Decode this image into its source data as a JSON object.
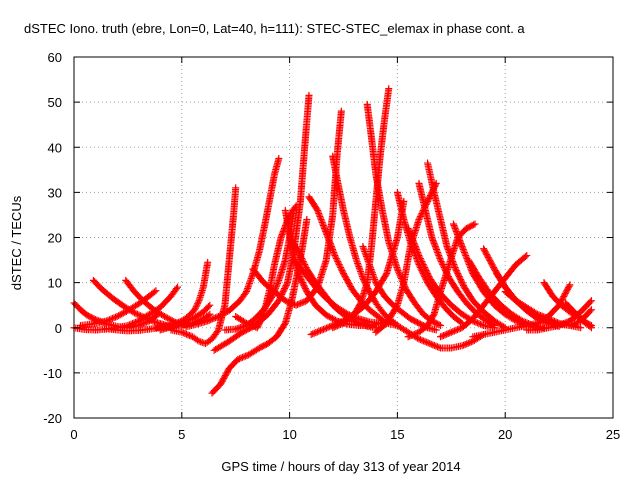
{
  "chart_data": {
    "type": "scatter",
    "title": "dSTEC Iono. truth (ebre, Lon=0, Lat=40, h=111): STEC-STEC_elemax in phase cont. a",
    "xlabel": "GPS time / hours of day 313 of year 2014",
    "ylabel": "dSTEC  / TECUs",
    "xlim": [
      0,
      25
    ],
    "ylim": [
      -20,
      60
    ],
    "x_ticks": [
      0,
      5,
      10,
      15,
      20,
      25
    ],
    "y_ticks": [
      -20,
      -10,
      0,
      10,
      20,
      30,
      40,
      50,
      60
    ],
    "x_tick_labels": [
      "0",
      "5",
      "10",
      "15",
      "20",
      "25"
    ],
    "y_tick_labels": [
      "-20",
      "-10",
      "0",
      "10",
      "20",
      "30",
      "40",
      "50",
      "60"
    ],
    "grid": true,
    "marker": "plus",
    "color": "#ff0000",
    "series": [
      {
        "x": [
          0.0,
          0.3,
          0.6,
          1.0,
          1.5,
          2.0,
          2.5,
          3.0,
          3.5,
          3.9
        ],
        "y": [
          5.5,
          4.0,
          2.8,
          1.8,
          0.9,
          0.3,
          0.0,
          0.5,
          1.5,
          3.0
        ]
      },
      {
        "x": [
          0.0,
          0.5,
          1.0,
          1.5,
          2.0,
          2.5,
          3.0,
          3.5,
          4.0,
          4.5,
          4.8
        ],
        "y": [
          0.0,
          -0.4,
          -0.5,
          -0.3,
          0.0,
          0.5,
          1.5,
          3.0,
          4.5,
          7.0,
          9.0
        ]
      },
      {
        "x": [
          0.9,
          1.3,
          1.8,
          2.3,
          2.8,
          3.3,
          3.8,
          4.3,
          4.6
        ],
        "y": [
          10.5,
          8.5,
          6.5,
          4.8,
          3.3,
          2.2,
          1.2,
          0.5,
          0.2
        ]
      },
      {
        "x": [
          0.3,
          0.8,
          1.5,
          2.0,
          2.5,
          3.0,
          3.4,
          3.8
        ],
        "y": [
          0.5,
          0.8,
          1.5,
          2.5,
          3.8,
          5.3,
          6.7,
          8.2
        ]
      },
      {
        "x": [
          2.4,
          2.8,
          3.2,
          3.7,
          4.2,
          4.7,
          5.2
        ],
        "y": [
          10.5,
          8.0,
          6.0,
          4.0,
          2.5,
          1.2,
          0.5
        ]
      },
      {
        "x": [
          1.5,
          2.0,
          2.5,
          3.0,
          3.5,
          4.0,
          4.5,
          5.0,
          5.5,
          6.0,
          6.3
        ],
        "y": [
          -0.2,
          -0.5,
          -0.7,
          -0.6,
          -0.3,
          0.0,
          0.3,
          0.5,
          1.0,
          2.0,
          3.0
        ]
      },
      {
        "x": [
          4.0,
          4.5,
          5.0,
          5.5,
          6.0,
          6.3
        ],
        "y": [
          -0.5,
          0.2,
          1.0,
          2.0,
          3.5,
          5.0
        ]
      },
      {
        "x": [
          3.8,
          4.5,
          5.0,
          5.3,
          5.6,
          5.8,
          6.0,
          6.2
        ],
        "y": [
          0.0,
          0.5,
          1.5,
          2.5,
          4.0,
          6.0,
          9.0,
          14.5
        ]
      },
      {
        "x": [
          4.5,
          5.0,
          5.5,
          5.8,
          6.1,
          6.4,
          6.7,
          7.0,
          7.2,
          7.4,
          7.5
        ],
        "y": [
          -0.5,
          -1.0,
          -2.0,
          -3.0,
          -3.5,
          -2.5,
          -0.5,
          5.0,
          15.0,
          25.0,
          31.0
        ]
      },
      {
        "x": [
          5.2,
          5.7,
          6.2,
          6.7,
          7.2,
          7.7,
          8.0,
          8.3,
          8.6,
          8.9,
          9.1,
          9.3,
          9.5
        ],
        "y": [
          0.2,
          0.8,
          1.5,
          2.5,
          3.8,
          6.0,
          8.0,
          12.0,
          17.0,
          24.0,
          29.0,
          34.0,
          37.5
        ]
      },
      {
        "x": [
          6.4,
          6.8,
          7.2,
          7.6,
          8.1,
          8.6,
          9.0,
          9.4,
          9.8,
          10.1,
          10.4,
          10.6,
          10.8
        ],
        "y": [
          -14.5,
          -12.5,
          -9.0,
          -7.0,
          -6.0,
          -4.5,
          -3.5,
          -2.0,
          1.0,
          6.0,
          13.0,
          18.0,
          24.0
        ]
      },
      {
        "x": [
          6.5,
          7.2,
          7.8,
          8.4,
          9.0,
          9.5,
          9.9,
          10.2,
          10.5,
          10.7,
          10.9
        ],
        "y": [
          -5.0,
          -3.0,
          -1.0,
          0.5,
          3.0,
          6.0,
          10.0,
          17.0,
          28.0,
          40.0,
          51.5
        ]
      },
      {
        "x": [
          7.5,
          8.0,
          8.5,
          8.7,
          8.9,
          9.1,
          9.3,
          9.6,
          10.0,
          10.3
        ],
        "y": [
          2.5,
          1.0,
          0.0,
          2.0,
          5.0,
          9.0,
          14.0,
          20.0,
          25.0,
          27.0
        ]
      },
      {
        "x": [
          7.0,
          7.5,
          8.0,
          8.4,
          8.8,
          9.2,
          9.5,
          9.8,
          10.0,
          10.2
        ],
        "y": [
          -0.5,
          -0.3,
          0.5,
          2.0,
          4.0,
          7.0,
          10.5,
          15.0,
          20.0,
          26.0
        ]
      },
      {
        "x": [
          8.3,
          8.8,
          9.3,
          9.8,
          10.3,
          10.8,
          11.3,
          11.7,
          12.0,
          12.2,
          12.4
        ],
        "y": [
          13.0,
          10.0,
          8.0,
          6.0,
          5.0,
          6.0,
          9.0,
          15.0,
          25.0,
          38.0,
          48.0
        ]
      },
      {
        "x": [
          9.8,
          10.1,
          10.4,
          10.8,
          11.2,
          11.7,
          12.2,
          12.7,
          13.2,
          13.7,
          14.2
        ],
        "y": [
          26.0,
          18.0,
          12.0,
          8.0,
          5.0,
          2.8,
          1.5,
          0.8,
          0.5,
          0.5,
          1.0
        ]
      },
      {
        "x": [
          10.0,
          10.4,
          10.8,
          11.2,
          11.6,
          12.0,
          12.4,
          12.8,
          13.2,
          13.6,
          14.0
        ],
        "y": [
          20.0,
          17.0,
          13.0,
          10.0,
          7.5,
          5.0,
          3.3,
          2.0,
          1.0,
          0.3,
          0.0
        ]
      },
      {
        "x": [
          10.2,
          10.7,
          11.2,
          11.7,
          12.2,
          12.7,
          13.2,
          13.7,
          14.2,
          14.7
        ],
        "y": [
          15.0,
          12.0,
          9.0,
          6.5,
          4.5,
          3.0,
          2.0,
          1.3,
          1.0,
          1.5
        ]
      },
      {
        "x": [
          10.9,
          11.3,
          11.7,
          12.1,
          12.5,
          12.9,
          13.3,
          13.7,
          14.1,
          14.5,
          15.0
        ],
        "y": [
          29.0,
          26.0,
          21.0,
          16.0,
          12.0,
          8.5,
          6.0,
          4.0,
          2.5,
          1.0,
          0.5
        ]
      },
      {
        "x": [
          11.0,
          11.5,
          12.0,
          12.5,
          13.0,
          13.5,
          14.0,
          14.5,
          15.0,
          15.3
        ],
        "y": [
          -1.5,
          -0.5,
          0.5,
          1.5,
          3.0,
          5.0,
          8.0,
          12.0,
          20.0,
          28.0
        ]
      },
      {
        "x": [
          12.0,
          12.2,
          12.5,
          12.8,
          13.1,
          13.4,
          13.7,
          14.0,
          14.3,
          14.6,
          14.9
        ],
        "y": [
          38.0,
          33.0,
          26.0,
          20.0,
          15.0,
          11.0,
          8.0,
          5.5,
          3.5,
          2.0,
          1.0
        ]
      },
      {
        "x": [
          12.0,
          12.5,
          13.0,
          13.3,
          13.6,
          13.8,
          14.0,
          14.2,
          14.4,
          14.6
        ],
        "y": [
          0.0,
          1.0,
          3.0,
          5.5,
          10.0,
          18.0,
          28.0,
          38.0,
          46.0,
          53.0
        ]
      },
      {
        "x": [
          13.6,
          13.8,
          14.0,
          14.3,
          14.6,
          15.0,
          15.4,
          15.8,
          16.2,
          16.6,
          17.0
        ],
        "y": [
          49.5,
          42.0,
          34.0,
          26.0,
          19.0,
          13.0,
          8.5,
          5.5,
          3.0,
          1.5,
          0.5
        ]
      },
      {
        "x": [
          13.4,
          13.7,
          14.0,
          14.4,
          14.8,
          15.2,
          15.6,
          16.0,
          16.4,
          16.8
        ],
        "y": [
          18.0,
          14.0,
          10.0,
          7.0,
          5.0,
          3.5,
          2.0,
          1.0,
          0.0,
          -0.5
        ]
      },
      {
        "x": [
          14.0,
          14.5,
          15.0,
          15.3,
          15.6,
          16.0,
          16.4,
          16.8
        ],
        "y": [
          -1.0,
          1.0,
          5.0,
          10.0,
          18.0,
          24.0,
          28.0,
          32.0
        ]
      },
      {
        "x": [
          15.0,
          15.3,
          15.6,
          16.0,
          16.4,
          16.8,
          17.2,
          17.6,
          18.0
        ],
        "y": [
          30.0,
          24.0,
          19.0,
          14.0,
          10.0,
          7.0,
          4.5,
          2.5,
          1.0
        ]
      },
      {
        "x": [
          15.5,
          16.0,
          16.5,
          17.0,
          17.5,
          18.0,
          18.5,
          19.0,
          19.5
        ],
        "y": [
          22.0,
          16.0,
          11.0,
          7.5,
          5.0,
          3.0,
          1.5,
          0.5,
          0.0
        ]
      },
      {
        "x": [
          15.5,
          16.0,
          16.4,
          16.7,
          17.0,
          17.4,
          17.8,
          18.2,
          18.6
        ],
        "y": [
          -2.0,
          -1.0,
          0.5,
          3.0,
          8.0,
          14.0,
          20.0,
          22.0,
          23.0
        ]
      },
      {
        "x": [
          16.0,
          16.3,
          16.6,
          17.0,
          17.4,
          17.8,
          18.2,
          18.6,
          19.0,
          19.5
        ],
        "y": [
          32.0,
          26.0,
          20.0,
          15.0,
          11.0,
          8.0,
          5.5,
          3.5,
          2.0,
          0.5
        ]
      },
      {
        "x": [
          16.4,
          16.7,
          17.0,
          17.3,
          17.7,
          18.1,
          18.5,
          19.0,
          19.5,
          20.0
        ],
        "y": [
          36.5,
          30.0,
          24.0,
          18.0,
          13.0,
          9.0,
          6.0,
          3.5,
          1.5,
          0.0
        ]
      },
      {
        "x": [
          15.0,
          15.5,
          16.0,
          16.5,
          17.0,
          17.5,
          18.0,
          18.5,
          19.0
        ],
        "y": [
          0.5,
          -1.0,
          -2.5,
          -3.5,
          -4.5,
          -4.5,
          -4.0,
          -3.0,
          -1.5
        ]
      },
      {
        "x": [
          17.0,
          17.5,
          18.0,
          18.5,
          19.0,
          19.5,
          20.0,
          20.5,
          21.0
        ],
        "y": [
          -2.0,
          -1.0,
          0.0,
          2.0,
          5.0,
          8.0,
          11.0,
          14.0,
          16.0
        ]
      },
      {
        "x": [
          17.6,
          18.0,
          18.5,
          19.0,
          19.5,
          20.0,
          20.5,
          21.0,
          21.5
        ],
        "y": [
          23.0,
          18.0,
          12.0,
          8.0,
          5.0,
          3.0,
          1.5,
          0.5,
          0.0
        ]
      },
      {
        "x": [
          18.3,
          18.8,
          19.3,
          19.8,
          20.3,
          20.8,
          21.3,
          21.8
        ],
        "y": [
          15.0,
          11.0,
          7.5,
          5.0,
          3.0,
          1.5,
          0.5,
          0.0
        ]
      },
      {
        "x": [
          19.0,
          19.5,
          20.0,
          20.5,
          21.0,
          21.5,
          22.0,
          22.5
        ],
        "y": [
          17.5,
          13.0,
          9.0,
          6.0,
          3.8,
          2.0,
          1.0,
          0.3
        ]
      },
      {
        "x": [
          19.6,
          20.0,
          20.5,
          21.0,
          21.5,
          22.0,
          22.5,
          23.0,
          23.5
        ],
        "y": [
          12.0,
          9.0,
          6.0,
          4.0,
          2.5,
          1.5,
          0.8,
          0.5,
          0.0
        ]
      },
      {
        "x": [
          18.5,
          19.0,
          19.5,
          20.0,
          20.5,
          21.0,
          21.5,
          22.0,
          22.5,
          23.0
        ],
        "y": [
          -2.0,
          -1.5,
          -1.0,
          -0.5,
          0.0,
          0.5,
          1.0,
          2.5,
          5.0,
          9.5
        ]
      },
      {
        "x": [
          20.0,
          20.5,
          21.0,
          21.5,
          22.0,
          22.5,
          23.0,
          23.5,
          24.0
        ],
        "y": [
          8.0,
          6.0,
          4.5,
          3.0,
          2.0,
          1.0,
          0.5,
          1.5,
          4.0
        ]
      },
      {
        "x": [
          21.0,
          21.5,
          22.0,
          22.5,
          23.0,
          23.5,
          24.0
        ],
        "y": [
          -0.5,
          -0.5,
          0.0,
          0.5,
          1.5,
          3.5,
          6.0
        ]
      },
      {
        "x": [
          21.8,
          22.2,
          22.6,
          23.0,
          23.4,
          23.8,
          24.0
        ],
        "y": [
          10.0,
          7.0,
          5.0,
          3.5,
          2.5,
          1.0,
          0.5
        ]
      },
      {
        "x": [
          22.8,
          23.2,
          23.6,
          24.0
        ],
        "y": [
          5.5,
          3.5,
          1.5,
          0.0
        ]
      }
    ]
  }
}
